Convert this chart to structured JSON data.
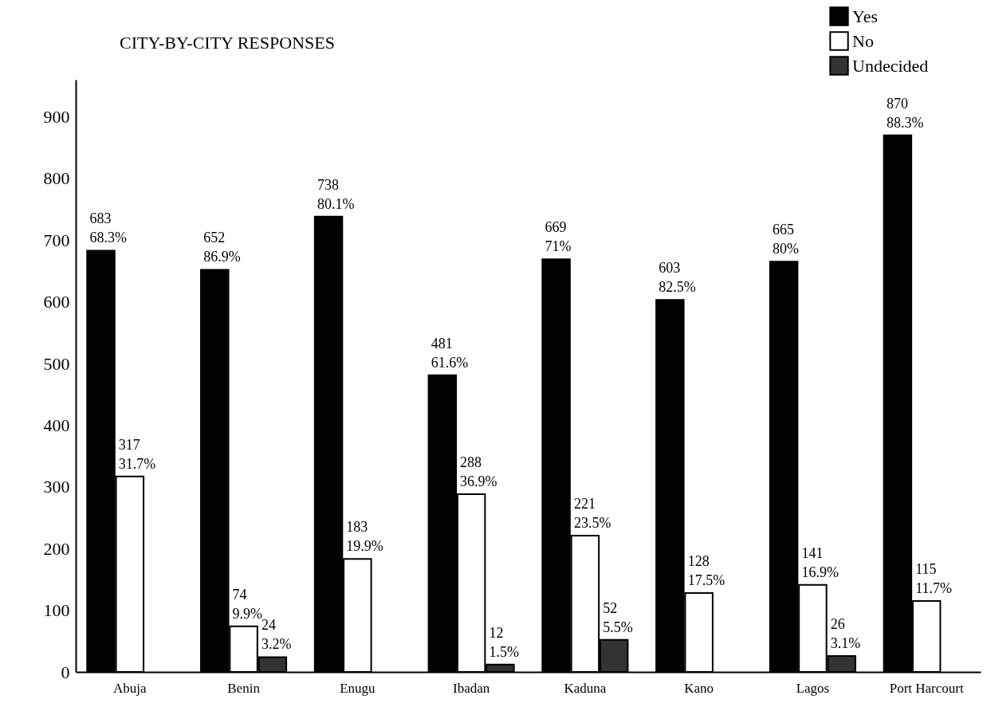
{
  "chart_data": {
    "type": "bar",
    "title": "CITY-BY-CITY RESPONSES",
    "categories": [
      "Abuja",
      "Benin",
      "Enugu",
      "Ibadan",
      "Kaduna",
      "Kano",
      "Lagos",
      "Port Harcourt"
    ],
    "series": [
      {
        "name": "Yes",
        "color": "#000000",
        "values": [
          683,
          652,
          738,
          481,
          669,
          603,
          665,
          870
        ],
        "value_labels": [
          "683\n68.3%",
          "652\n86.9%",
          "738\n80.1%",
          "481\n61.6%",
          "669\n71%",
          "603\n82.5%",
          "665\n80%",
          "870\n88.3%"
        ]
      },
      {
        "name": "No",
        "color": "#ffffff",
        "values": [
          317,
          74,
          183,
          288,
          221,
          128,
          141,
          115
        ],
        "value_labels": [
          "317\n31.7%",
          "74\n9.9%",
          "183\n19.9%",
          "288\n36.9%",
          "221\n23.5%",
          "128\n17.5%",
          "141\n16.9%",
          "115\n11.7%"
        ]
      },
      {
        "name": "Undecided",
        "color": "#333333",
        "values": [
          null,
          24,
          null,
          12,
          52,
          null,
          26,
          null
        ],
        "value_labels": [
          null,
          "24\n3.2%",
          null,
          "12\n1.5%",
          "52\n5.5%",
          null,
          "26\n3.1%",
          null
        ]
      }
    ],
    "ylim": [
      0,
      960
    ],
    "yticks": [
      0,
      100,
      200,
      300,
      400,
      500,
      600,
      700,
      800,
      900
    ],
    "grid": false,
    "legend": "top right"
  }
}
